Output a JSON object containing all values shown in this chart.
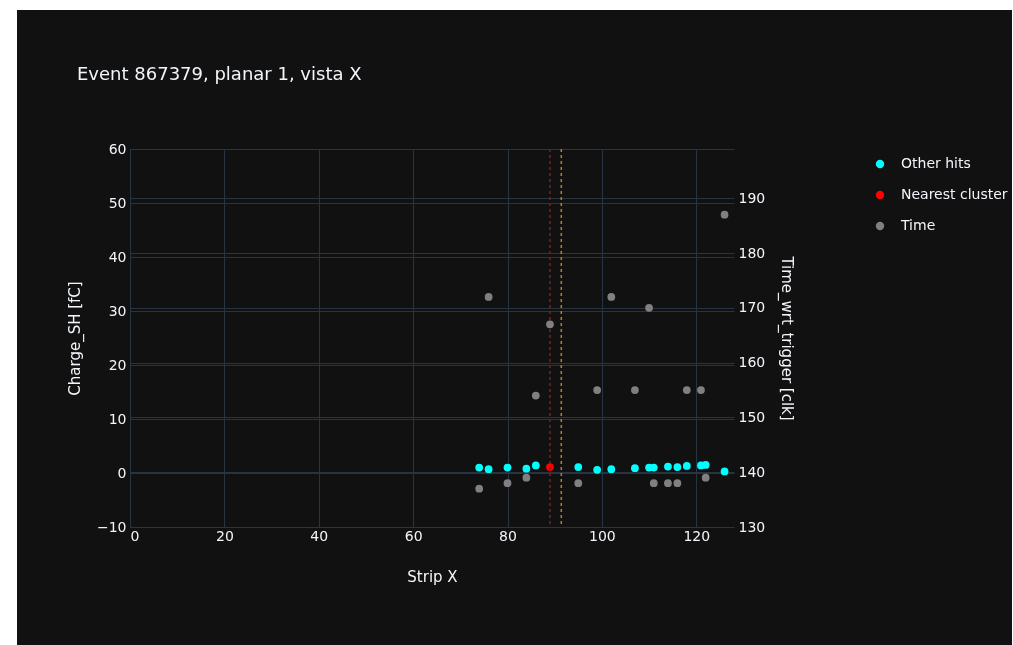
{
  "chart_data": {
    "type": "scatter",
    "title": "Event 867379, planar 1, vista X",
    "xlabel": "Strip X",
    "ylabel": "Charge_SH [fC]",
    "y2label": "Time_wrt_trigger [clk]",
    "series": [
      {
        "name": "Other hits",
        "color": "#00ffff",
        "x": [
          74,
          76,
          80,
          84,
          86,
          95,
          99,
          102,
          107,
          110,
          111,
          114,
          116,
          118,
          121,
          122,
          126
        ],
        "values": [
          1.0,
          0.7,
          1.0,
          0.8,
          1.4,
          1.1,
          0.6,
          0.7,
          0.9,
          1.0,
          1.0,
          1.2,
          1.1,
          1.3,
          1.4,
          1.5,
          0.3
        ]
      },
      {
        "name": "Nearest cluster",
        "color": "#ff0000",
        "x": [
          89
        ],
        "values": [
          1.1
        ]
      },
      {
        "name": "Time",
        "color": "#808080",
        "axis": "y2",
        "x": [
          74,
          76,
          80,
          84,
          86,
          89,
          95,
          99,
          102,
          107,
          110,
          111,
          114,
          116,
          118,
          121,
          122,
          126
        ],
        "values": [
          137,
          172,
          138,
          139,
          154,
          167,
          138,
          155,
          172,
          155,
          170,
          138,
          138,
          138,
          155,
          155,
          139,
          187
        ]
      }
    ],
    "xlim": [
      0,
      128
    ],
    "xticks": [
      0,
      20,
      40,
      60,
      80,
      100,
      120
    ],
    "ylim": [
      -10,
      60
    ],
    "yticks": [
      {
        "value": -10,
        "label": "−10"
      },
      0,
      10,
      20,
      30,
      40,
      50,
      60
    ],
    "y2lim": [
      130,
      199
    ],
    "y2ticks": [
      130,
      140,
      150,
      160,
      170,
      180,
      190
    ],
    "ref_lines": [
      {
        "axis": "x",
        "value": 89,
        "color": "#8b1a1a",
        "line_style": "dotted"
      },
      {
        "axis": "x",
        "value": 91.4,
        "color": "#b8860b",
        "line_style": "dotted"
      }
    ],
    "grid": true,
    "legend": "top right",
    "marker": "circle"
  }
}
